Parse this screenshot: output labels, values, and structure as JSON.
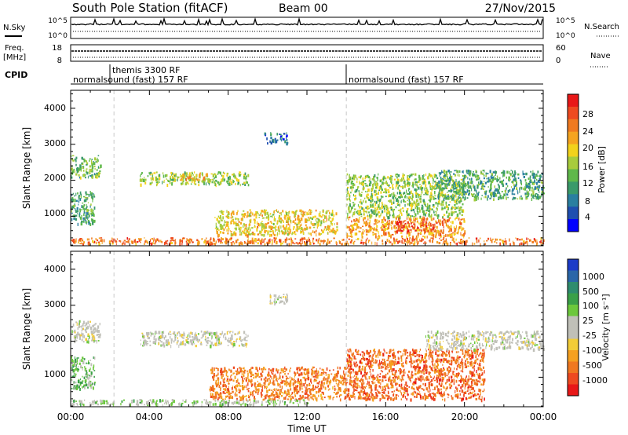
{
  "header": {
    "station": "South Pole Station (fitACF)",
    "beam": "Beam 00",
    "date": "27/Nov/2015"
  },
  "params": {
    "nsky_label": "N.Sky",
    "nsky_ticks": [
      "10^5",
      "10^0"
    ],
    "nsearch_label": "N.Search",
    "nsearch_ticks": [
      "10^5",
      "10^0"
    ],
    "freq_label": "Freq.",
    "freq_unit": "[MHz]",
    "freq_ticks": [
      "18",
      "8"
    ],
    "nave_label": "Nave",
    "nave_ticks": [
      "60",
      "0"
    ],
    "cpid_label": "CPID",
    "cpid_segments": [
      {
        "label": "normalsound (fast) 157 RF",
        "start_hour": 0,
        "end_hour": 14
      },
      {
        "label": "themis 3300 RF",
        "start_hour": 2,
        "end_hour": 2.2
      },
      {
        "label": "normalsound (fast) 157 RF",
        "start_hour": 14,
        "end_hour": 24
      }
    ]
  },
  "axes": {
    "ylabel": "Slant Range [km]",
    "xlabel": "Time UT",
    "yticks": [
      "1000",
      "2000",
      "3000",
      "4000"
    ],
    "xticks": [
      "00:00",
      "04:00",
      "08:00",
      "12:00",
      "16:00",
      "20:00",
      "00:00"
    ]
  },
  "colorbars": {
    "power": {
      "label": "Power [dB]",
      "ticks": [
        "4",
        "8",
        "12",
        "16",
        "20",
        "24",
        "28"
      ],
      "colors": [
        "#0000ff",
        "#1f4fb0",
        "#2a7fa0",
        "#3a9a6a",
        "#5fb84a",
        "#a8cc3c",
        "#f2d21c",
        "#f5a420",
        "#f07a20",
        "#ee4a20",
        "#e81818"
      ]
    },
    "velocity": {
      "label": "Velocity [m s⁻¹]",
      "ticks": [
        "1000",
        "500",
        "100",
        "25",
        "-25",
        "-100",
        "-500",
        "-1000"
      ],
      "colors": [
        "#1c3cc8",
        "#2a66a8",
        "#2e8c6e",
        "#3aa048",
        "#6cc83c",
        "#c0c0b8",
        "#c0c0b8",
        "#f2cc38",
        "#f5a020",
        "#f07820",
        "#ee4a20",
        "#e81818"
      ]
    }
  },
  "chart_data": [
    {
      "type": "heatmap",
      "title": "Power",
      "xlabel": "Time UT",
      "ylabel": "Slant Range [km]",
      "xlim": [
        "00:00",
        "24:00"
      ],
      "ylim": [
        180,
        4500
      ],
      "colorbar_label": "Power [dB]",
      "colorbar_range": [
        0,
        30
      ],
      "regions": [
        {
          "t0": 0.0,
          "t1": 1.5,
          "r0": 2100,
          "r1": 2700,
          "value": 12
        },
        {
          "t0": 0.0,
          "t1": 1.2,
          "r0": 800,
          "r1": 1700,
          "value": 10
        },
        {
          "t0": 3.5,
          "t1": 9.0,
          "r0": 1900,
          "r1": 2250,
          "value": 14
        },
        {
          "t0": 5.5,
          "t1": 7.0,
          "r0": 2000,
          "r1": 2200,
          "value": 20
        },
        {
          "t0": 9.8,
          "t1": 11.0,
          "r0": 3050,
          "r1": 3350,
          "value": 6
        },
        {
          "t0": 7.3,
          "t1": 13.5,
          "r0": 500,
          "r1": 1200,
          "value": 18
        },
        {
          "t0": 14.0,
          "t1": 20.0,
          "r0": 450,
          "r1": 1000,
          "value": 22
        },
        {
          "t0": 16.5,
          "t1": 18.5,
          "r0": 600,
          "r1": 900,
          "value": 28
        },
        {
          "t0": 14.0,
          "t1": 20.0,
          "r0": 1000,
          "r1": 2200,
          "value": 14
        },
        {
          "t0": 18.5,
          "t1": 24.0,
          "r0": 1500,
          "r1": 2300,
          "value": 10
        },
        {
          "t0": 0.0,
          "t1": 24.0,
          "r0": 250,
          "r1": 420,
          "value": 24
        }
      ]
    },
    {
      "type": "heatmap",
      "title": "Velocity",
      "xlabel": "Time UT",
      "ylabel": "Slant Range [km]",
      "xlim": [
        "00:00",
        "24:00"
      ],
      "ylim": [
        180,
        4500
      ],
      "colorbar_label": "Velocity [m s⁻¹]",
      "colorbar_range": [
        -1000,
        1000
      ],
      "regions": [
        {
          "t0": 0.0,
          "t1": 1.5,
          "r0": 2000,
          "r1": 2600,
          "value": 0
        },
        {
          "t0": 0.0,
          "t1": 1.2,
          "r0": 700,
          "r1": 1600,
          "value": 300
        },
        {
          "t0": 3.5,
          "t1": 9.0,
          "r0": 1900,
          "r1": 2300,
          "value": 0
        },
        {
          "t0": 10.0,
          "t1": 11.0,
          "r0": 3050,
          "r1": 3350,
          "value": 0
        },
        {
          "t0": 7.0,
          "t1": 14.0,
          "r0": 400,
          "r1": 1300,
          "value": -600
        },
        {
          "t0": 14.0,
          "t1": 21.0,
          "r0": 400,
          "r1": 1800,
          "value": -700
        },
        {
          "t0": 18.0,
          "t1": 24.0,
          "r0": 1800,
          "r1": 2300,
          "value": 0
        },
        {
          "t0": 0.0,
          "t1": 12.0,
          "r0": 250,
          "r1": 400,
          "value": 150
        }
      ]
    }
  ]
}
